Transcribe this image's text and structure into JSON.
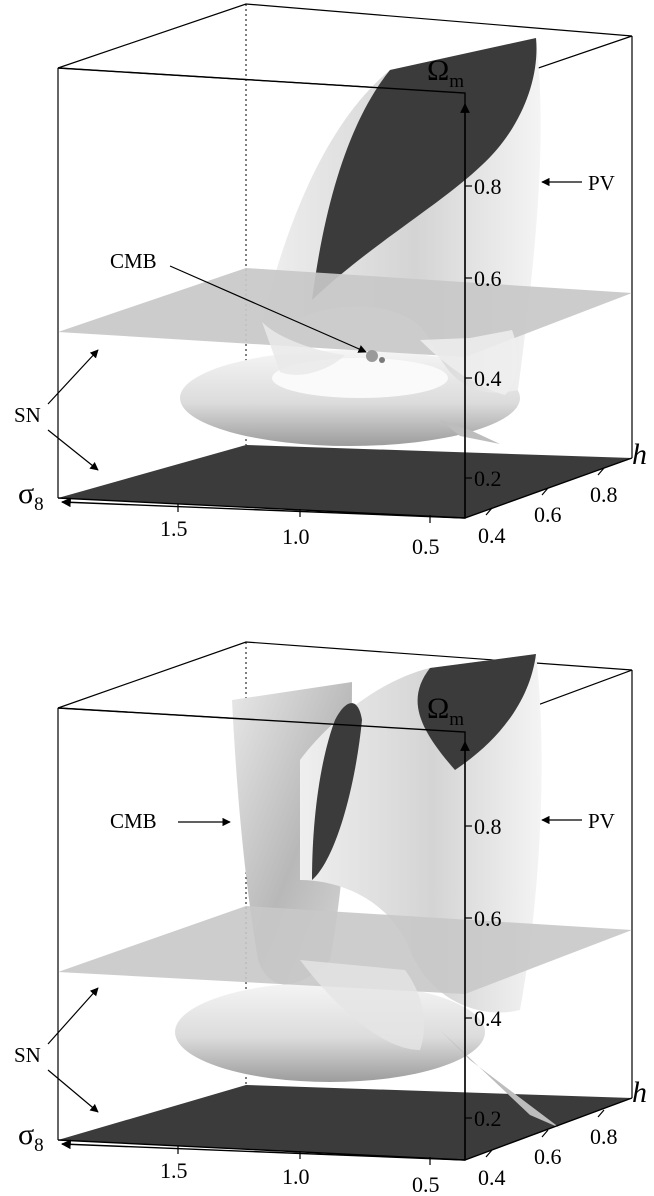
{
  "colors": {
    "dark_surface": "#3b3b3b",
    "light_plane": "#c8c8c8",
    "surface_light": "#e6e6e6",
    "surface_mid": "#bdbdbd",
    "frame": "#000000"
  },
  "panels": [
    {
      "axis": {
        "omega_m": "Ω",
        "omega_sub": "m",
        "sigma8": "σ",
        "sigma_sub": "8",
        "h": "h",
        "omega_ticks": [
          "0.8",
          "0.6",
          "0.4",
          "0.2"
        ],
        "sigma_ticks": [
          "1.5",
          "1.0",
          "0.5"
        ],
        "h_ticks": [
          "0.4",
          "0.6",
          "0.8"
        ]
      },
      "labels": {
        "pv": "PV",
        "cmb": "CMB",
        "sn": "SN"
      }
    },
    {
      "axis": {
        "omega_m": "Ω",
        "omega_sub": "m",
        "sigma8": "σ",
        "sigma_sub": "8",
        "h": "h",
        "omega_ticks": [
          "0.8",
          "0.6",
          "0.4",
          "0.2"
        ],
        "sigma_ticks": [
          "1.5",
          "1.0",
          "0.5"
        ],
        "h_ticks": [
          "0.4",
          "0.6",
          "0.8"
        ]
      },
      "labels": {
        "pv": "PV",
        "cmb": "CMB",
        "sn": "SN"
      }
    }
  ]
}
